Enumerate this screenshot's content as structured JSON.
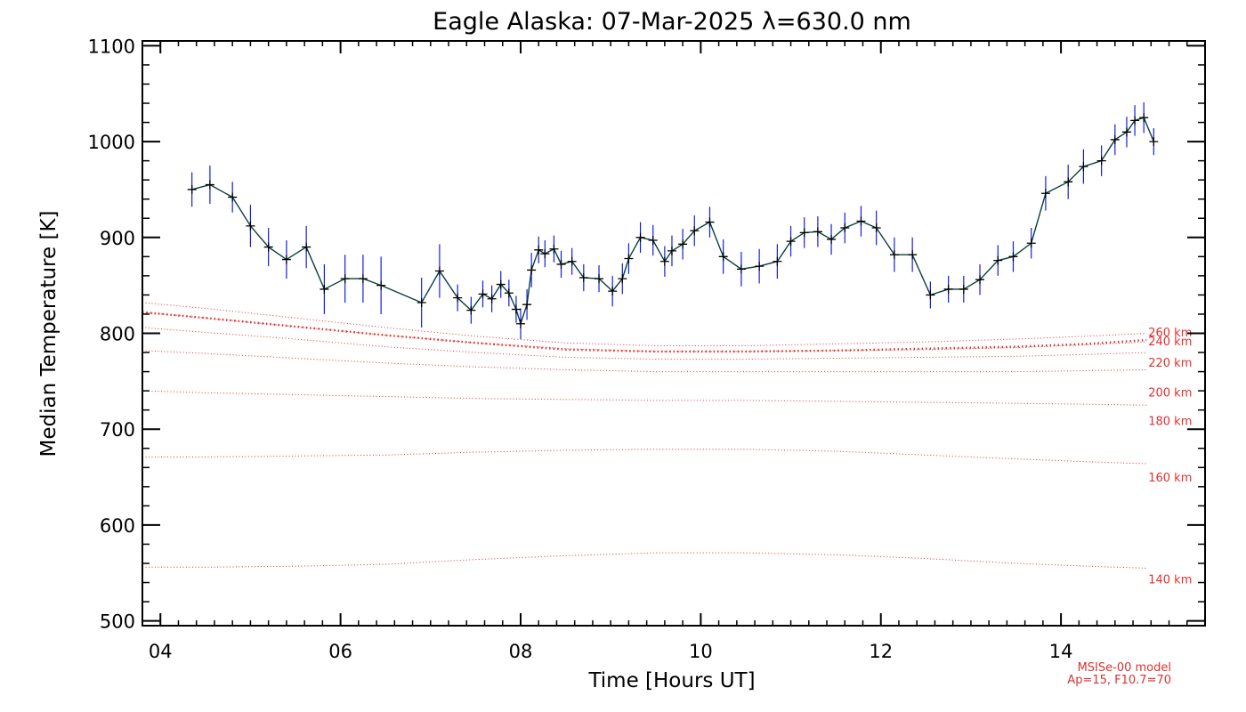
{
  "chart_data": {
    "type": "line",
    "title": "Eagle Alaska: 07-Mar-2025 λ=630.0 nm",
    "xlabel": "Time [Hours UT]",
    "ylabel": "Median Temperature [K]",
    "xlim": [
      3.8,
      15.6
    ],
    "ylim": [
      495,
      1105
    ],
    "xticks": [
      4,
      6,
      8,
      10,
      12,
      14
    ],
    "xtick_labels": [
      "04",
      "06",
      "08",
      "10",
      "12",
      "14"
    ],
    "yticks": [
      500,
      600,
      700,
      800,
      900,
      1000,
      1100
    ],
    "ytick_labels": [
      "500",
      "600",
      "700",
      "800",
      "900",
      "1000",
      "1100"
    ],
    "colors": {
      "data_line": "#0b3f3f",
      "error_bar": "#1020e0",
      "marker": "#000000",
      "model": "#e03030"
    },
    "series": [
      {
        "name": "Median Temperature",
        "x": [
          4.35,
          4.55,
          4.8,
          5.0,
          5.2,
          5.4,
          5.62,
          5.82,
          6.05,
          6.25,
          6.45,
          6.9,
          7.1,
          7.3,
          7.45,
          7.58,
          7.68,
          7.78,
          7.87,
          7.95,
          8.0,
          8.07,
          8.12,
          8.2,
          8.27,
          8.37,
          8.45,
          8.57,
          8.7,
          8.87,
          9.02,
          9.13,
          9.2,
          9.33,
          9.47,
          9.6,
          9.68,
          9.8,
          9.93,
          10.1,
          10.25,
          10.45,
          10.65,
          10.85,
          11.0,
          11.15,
          11.3,
          11.45,
          11.6,
          11.78,
          11.95,
          12.15,
          12.35,
          12.55,
          12.75,
          12.92,
          13.1,
          13.3,
          13.47,
          13.67,
          13.83,
          14.08,
          14.25,
          14.45,
          14.6,
          14.73,
          14.82,
          14.92,
          15.03
        ],
        "values": [
          950,
          955,
          942,
          912,
          890,
          877,
          890,
          846,
          857,
          857,
          850,
          832,
          865,
          837,
          824,
          841,
          836,
          851,
          842,
          825,
          810,
          830,
          866,
          887,
          883,
          888,
          872,
          875,
          858,
          857,
          844,
          857,
          878,
          900,
          897,
          875,
          886,
          893,
          907,
          916,
          880,
          867,
          870,
          875,
          896,
          905,
          906,
          898,
          910,
          917,
          910,
          882,
          882,
          840,
          846,
          846,
          856,
          876,
          880,
          894,
          946,
          958,
          974,
          980,
          1002,
          1010,
          1022,
          1025,
          1000
        ],
        "errors": [
          18,
          20,
          16,
          22,
          20,
          20,
          22,
          26,
          25,
          25,
          30,
          26,
          28,
          14,
          14,
          14,
          14,
          14,
          14,
          14,
          16,
          16,
          18,
          14,
          14,
          14,
          14,
          14,
          14,
          14,
          16,
          16,
          16,
          16,
          16,
          16,
          16,
          16,
          16,
          16,
          18,
          18,
          18,
          18,
          16,
          16,
          16,
          16,
          16,
          16,
          18,
          18,
          18,
          14,
          14,
          14,
          16,
          16,
          16,
          16,
          18,
          18,
          18,
          16,
          16,
          16,
          16,
          16,
          14
        ]
      }
    ],
    "model": {
      "name": "MSISe-00 model",
      "params": "Ap=15, F10.7=70",
      "x": [
        3.8,
        4.5,
        5.5,
        6.5,
        7.5,
        8.5,
        9.5,
        10.5,
        11.5,
        12.5,
        13.5,
        14.3,
        14.95
      ],
      "altitudes": [
        {
          "label": "140 km",
          "emphasized": false,
          "values": [
            556,
            556,
            557,
            559,
            564,
            568,
            571,
            571,
            569,
            565,
            560,
            557,
            555
          ]
        },
        {
          "label": "160 km",
          "emphasized": false,
          "values": [
            671,
            671,
            672,
            673,
            676,
            678,
            679,
            679,
            677,
            673,
            669,
            666,
            664
          ]
        },
        {
          "label": "180 km",
          "emphasized": false,
          "values": [
            740,
            738,
            736,
            734,
            732,
            731,
            730,
            730,
            729,
            728,
            727,
            726,
            725
          ]
        },
        {
          "label": "200 km",
          "emphasized": false,
          "values": [
            782,
            779,
            774,
            769,
            765,
            762,
            760,
            760,
            760,
            760,
            760,
            761,
            762
          ]
        },
        {
          "label": "220 km",
          "emphasized": false,
          "values": [
            806,
            801,
            794,
            786,
            780,
            775,
            773,
            773,
            774,
            775,
            776,
            778,
            780
          ]
        },
        {
          "label": "240 km",
          "emphasized": false,
          "values": [
            822,
            816,
            807,
            798,
            790,
            784,
            781,
            781,
            782,
            783,
            785,
            788,
            791
          ]
        },
        {
          "label": "260 km",
          "emphasized": true,
          "values": [
            822,
            816,
            807,
            798,
            790,
            783,
            781,
            781,
            782,
            784,
            786,
            789,
            793
          ]
        },
        {
          "label": "",
          "emphasized": false,
          "values": [
            832,
            826,
            816,
            806,
            797,
            790,
            787,
            787,
            789,
            791,
            794,
            797,
            800
          ]
        }
      ]
    }
  }
}
